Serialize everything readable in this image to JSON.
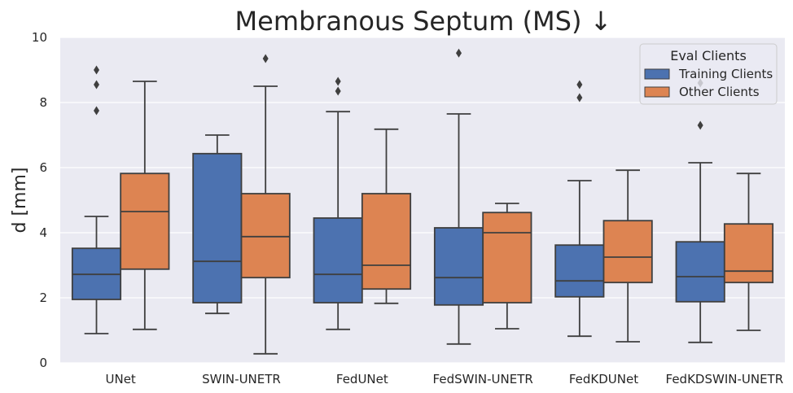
{
  "chart_data": {
    "type": "box",
    "title": "Membranous Septum (MS)  ↓",
    "xlabel": "",
    "ylabel": "d [mm]",
    "ylim": [
      0,
      10
    ],
    "yticks": [
      0,
      2,
      4,
      6,
      8,
      10
    ],
    "grid": true,
    "categories": [
      "UNet",
      "SWIN-UNETR",
      "FedUNet",
      "FedSWIN-UNETR",
      "FedKDUNet",
      "FedKDSWIN-UNETR"
    ],
    "legend": {
      "title": "Eval Clients",
      "placement": "top-right",
      "entries": [
        "Training Clients",
        "Other Clients"
      ]
    },
    "series": [
      {
        "name": "Training Clients",
        "color": "#4c72b0",
        "boxes": [
          {
            "whisker_low": 0.9,
            "q1": 1.95,
            "median": 2.72,
            "q3": 3.52,
            "whisker_high": 4.5,
            "outliers": [
              7.75,
              8.55,
              9.0
            ]
          },
          {
            "whisker_low": 1.52,
            "q1": 1.85,
            "median": 3.12,
            "q3": 6.43,
            "whisker_high": 7.0,
            "outliers": []
          },
          {
            "whisker_low": 1.03,
            "q1": 1.85,
            "median": 2.72,
            "q3": 4.45,
            "whisker_high": 7.72,
            "outliers": [
              8.35,
              8.65
            ]
          },
          {
            "whisker_low": 0.58,
            "q1": 1.78,
            "median": 2.62,
            "q3": 4.15,
            "whisker_high": 7.65,
            "outliers": [
              9.52
            ]
          },
          {
            "whisker_low": 0.82,
            "q1": 2.03,
            "median": 2.52,
            "q3": 3.62,
            "whisker_high": 5.6,
            "outliers": [
              8.15,
              8.55
            ]
          },
          {
            "whisker_low": 0.63,
            "q1": 1.88,
            "median": 2.65,
            "q3": 3.72,
            "whisker_high": 6.15,
            "outliers": [
              7.3,
              8.6
            ]
          }
        ]
      },
      {
        "name": "Other Clients",
        "color": "#dd8452",
        "boxes": [
          {
            "whisker_low": 1.03,
            "q1": 2.88,
            "median": 4.65,
            "q3": 5.82,
            "whisker_high": 8.65,
            "outliers": []
          },
          {
            "whisker_low": 0.28,
            "q1": 2.62,
            "median": 3.88,
            "q3": 5.2,
            "whisker_high": 8.5,
            "outliers": [
              9.35
            ]
          },
          {
            "whisker_low": 1.83,
            "q1": 2.27,
            "median": 3.0,
            "q3": 5.2,
            "whisker_high": 7.18,
            "outliers": []
          },
          {
            "whisker_low": 1.05,
            "q1": 1.85,
            "median": 4.0,
            "q3": 4.62,
            "whisker_high": 4.9,
            "outliers": []
          },
          {
            "whisker_low": 0.65,
            "q1": 2.47,
            "median": 3.25,
            "q3": 4.37,
            "whisker_high": 5.92,
            "outliers": []
          },
          {
            "whisker_low": 1.0,
            "q1": 2.47,
            "median": 2.82,
            "q3": 4.27,
            "whisker_high": 5.82,
            "outliers": []
          }
        ]
      }
    ],
    "colors": {
      "background": "#eaeaf2",
      "grid": "#ffffff",
      "line": "#3f3f3f"
    }
  }
}
